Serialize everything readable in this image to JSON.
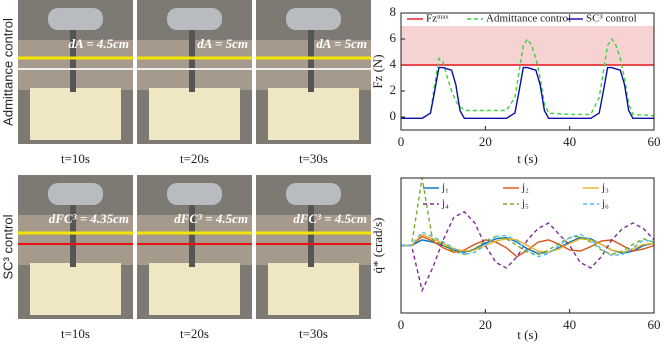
{
  "photos": {
    "rows": [
      {
        "label": "Admittance control",
        "panels": [
          {
            "annotation": "dA = 4.5cm",
            "caption": "t=10s"
          },
          {
            "annotation": "dA = 5cm",
            "caption": "t=20s"
          },
          {
            "annotation": "dA = 5cm",
            "caption": "t=30s"
          }
        ]
      },
      {
        "label": "SC³ control",
        "panels": [
          {
            "annotation": "dFC³ = 4.35cm",
            "caption": "t=10s"
          },
          {
            "annotation": "dFC³ = 4.5cm",
            "caption": "t=20s"
          },
          {
            "annotation": "dFC³ = 4.5cm",
            "caption": "t=30s"
          }
        ]
      }
    ]
  },
  "chart_data": [
    {
      "type": "line",
      "xlabel": "t (s)",
      "ylabel": "Fz (N)",
      "xlim": [
        0,
        60
      ],
      "ylim": [
        -1,
        8
      ],
      "xticks": [
        0,
        20,
        40,
        60
      ],
      "yticks": [
        0,
        2,
        4,
        6,
        8
      ],
      "band": {
        "range": [
          4,
          7
        ],
        "color": "#f6d2d2"
      },
      "x": [
        0,
        5,
        7,
        8,
        9,
        10,
        11,
        12,
        13,
        14,
        15,
        20,
        25,
        27,
        28,
        29,
        30,
        31,
        32,
        33,
        34,
        35,
        40,
        45,
        47,
        48,
        49,
        50,
        51,
        52,
        53,
        54,
        55,
        60
      ],
      "series": [
        {
          "name": "Fzᵐᵃˣ",
          "color": "#e8141a",
          "dashed": false,
          "values": [
            4,
            4,
            4,
            4,
            4,
            4,
            4,
            4,
            4,
            4,
            4,
            4,
            4,
            4,
            4,
            4,
            4,
            4,
            4,
            4,
            4,
            4,
            4,
            4,
            4,
            4,
            4,
            4,
            4,
            4,
            4,
            4,
            4,
            4
          ]
        },
        {
          "name": "Admittance control",
          "color": "#3cd23c",
          "dashed": true,
          "values": [
            -0.1,
            -0.1,
            0.3,
            2.5,
            4.5,
            4.2,
            3,
            2,
            1.2,
            0.8,
            0.5,
            0.5,
            0.5,
            1.5,
            3.5,
            5.5,
            6,
            5.5,
            4.5,
            3,
            1,
            0.3,
            0.2,
            0.2,
            1.5,
            3.5,
            5.5,
            6,
            5.5,
            4.5,
            3,
            1,
            0.2,
            0.1
          ]
        },
        {
          "name": "SC³ control",
          "color": "#0c0ca8",
          "dashed": false,
          "values": [
            -0.1,
            -0.1,
            0.3,
            2,
            3.8,
            3.8,
            3.7,
            3.6,
            2.5,
            0.5,
            -0.1,
            -0.1,
            -0.1,
            0.3,
            2,
            3.8,
            3.8,
            3.7,
            3.6,
            2.5,
            0.5,
            -0.1,
            -0.1,
            -0.1,
            0.3,
            2,
            3.8,
            3.8,
            3.7,
            3.6,
            2.5,
            0.5,
            -0.1,
            -0.1
          ]
        }
      ]
    },
    {
      "type": "line",
      "xlabel": "t (s)",
      "ylabel": "q̇* (crad/s)",
      "xlim": [
        0,
        60
      ],
      "ylim": [
        -6,
        6
      ],
      "xticks": [
        0,
        20,
        40,
        60
      ],
      "x": [
        0,
        2.5,
        5,
        7.5,
        10,
        12.5,
        15,
        17.5,
        20,
        22.5,
        25,
        27.5,
        30,
        32.5,
        35,
        37.5,
        40,
        42.5,
        45,
        47.5,
        50,
        52.5,
        55,
        57.5,
        60
      ],
      "series": [
        {
          "name": "j₁",
          "color": "#0072bd",
          "dashed": false,
          "values": [
            0,
            0,
            0.5,
            0.3,
            0,
            -0.4,
            -0.6,
            -0.3,
            0.2,
            0.6,
            0.7,
            0.3,
            -0.3,
            -0.7,
            -0.6,
            -0.2,
            0.3,
            0.7,
            0.6,
            0.1,
            -0.4,
            -0.7,
            -0.5,
            0,
            0.2
          ]
        },
        {
          "name": "j₂",
          "color": "#d95319",
          "dashed": false,
          "values": [
            0,
            0,
            0.8,
            0.4,
            -0.2,
            -0.6,
            -0.4,
            0.1,
            0.5,
            0.3,
            -0.2,
            -1,
            -0.4,
            0.3,
            0.5,
            0.1,
            -0.4,
            -0.5,
            -0.1,
            0.4,
            0.5,
            0,
            -0.5,
            -0.3,
            0
          ]
        },
        {
          "name": "j₃",
          "color": "#edb120",
          "dashed": false,
          "values": [
            0,
            0,
            1,
            0.6,
            0.2,
            -0.3,
            -0.5,
            -0.4,
            0,
            0.4,
            0.6,
            0.5,
            0,
            -0.5,
            -0.6,
            -0.3,
            0.2,
            0.6,
            0.5,
            0.1,
            -0.4,
            -0.6,
            -0.3,
            0.1,
            0.2
          ]
        },
        {
          "name": "j₄",
          "color": "#7e2f8e",
          "dashed": true,
          "values": [
            0,
            0,
            -4,
            -2,
            0.5,
            2.5,
            3,
            2,
            0,
            -1.5,
            -2,
            -1,
            0.5,
            1.5,
            2,
            1,
            0,
            -1.5,
            -2,
            -1,
            0.5,
            1.5,
            2,
            1.5,
            0.5
          ]
        },
        {
          "name": "j₅",
          "color": "#77ac30",
          "dashed": true,
          "values": [
            0,
            0,
            6,
            0.5,
            0,
            -0.5,
            -0.8,
            -0.3,
            0.4,
            0.8,
            0.6,
            0,
            -0.6,
            -0.8,
            -0.4,
            0.2,
            0.7,
            0.8,
            0.3,
            -0.4,
            -0.8,
            -0.5,
            0.1,
            0.6,
            0.3
          ]
        },
        {
          "name": "j₆",
          "color": "#4dbeee",
          "dashed": true,
          "values": [
            0,
            0,
            1.2,
            0.8,
            0.3,
            -0.2,
            -0.8,
            -0.6,
            0,
            0.8,
            0.9,
            0.4,
            -0.5,
            -1,
            -0.7,
            0,
            0.7,
            1,
            0.5,
            -0.3,
            -0.9,
            -0.8,
            -0.2,
            0.5,
            0.3
          ]
        }
      ]
    }
  ]
}
